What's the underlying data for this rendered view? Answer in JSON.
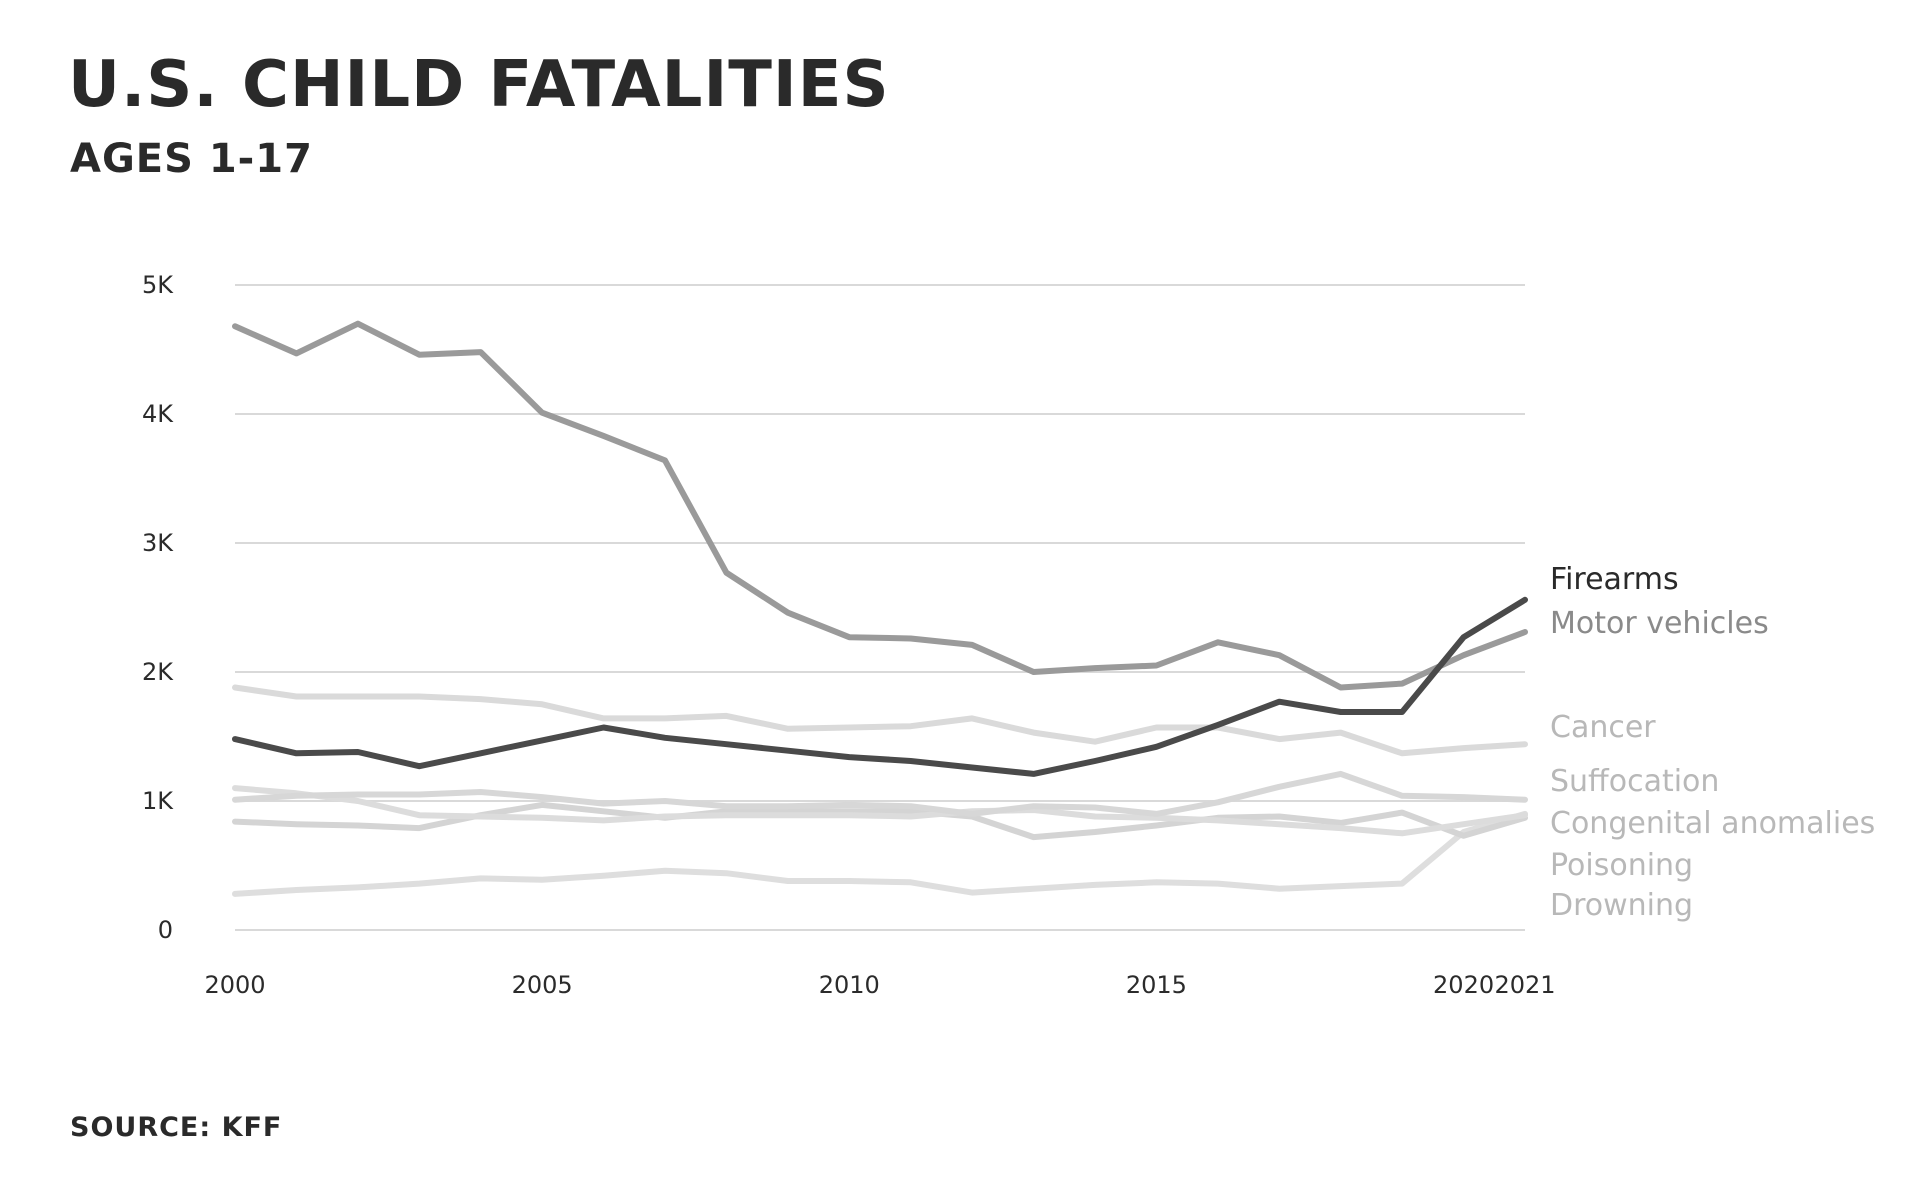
{
  "title": "U.S. CHILD FATALITIES",
  "subtitle": "AGES 1-17",
  "source": "SOURCE: KFF",
  "chart_data": {
    "type": "line",
    "title": "U.S. CHILD FATALITIES",
    "subtitle": "AGES 1-17",
    "xlabel": "",
    "ylabel": "",
    "x": [
      2000,
      2001,
      2002,
      2003,
      2004,
      2005,
      2006,
      2007,
      2008,
      2009,
      2010,
      2011,
      2012,
      2013,
      2014,
      2015,
      2016,
      2017,
      2018,
      2019,
      2020,
      2021
    ],
    "x_ticks": [
      2000,
      2005,
      2010,
      2015,
      2020,
      2021
    ],
    "x_tick_labels": [
      "2000",
      "2005",
      "2010",
      "2015",
      "2020",
      "2021"
    ],
    "xlim": [
      2000,
      2021
    ],
    "ylim": [
      0,
      5000
    ],
    "y_ticks": [
      0,
      1000,
      2000,
      3000,
      4000,
      5000
    ],
    "y_tick_labels": [
      "0",
      "1K",
      "2K",
      "3K",
      "4K",
      "5K"
    ],
    "grid": "horizontal",
    "legend": "direct labels at right end of lines",
    "series": [
      {
        "name": "Firearms",
        "color": "#4a4a4a",
        "label_color": "#2a2a2a",
        "values": [
          1480,
          1370,
          1380,
          1270,
          1370,
          1470,
          1570,
          1490,
          1440,
          1390,
          1340,
          1310,
          1260,
          1210,
          1310,
          1420,
          1590,
          1770,
          1690,
          1690,
          2270,
          2560
        ]
      },
      {
        "name": "Motor vehicles",
        "color": "#9a9a9a",
        "label_color": "#8a8a8a",
        "values": [
          4680,
          4470,
          4700,
          4460,
          4480,
          4010,
          3830,
          3640,
          2770,
          2460,
          2270,
          2260,
          2210,
          2000,
          2030,
          2050,
          2230,
          2130,
          1880,
          1910,
          2130,
          2310
        ]
      },
      {
        "name": "Cancer",
        "color": "#dadada",
        "label_color": "#b8b8b8",
        "values": [
          1880,
          1810,
          1810,
          1810,
          1790,
          1750,
          1640,
          1640,
          1660,
          1560,
          1570,
          1580,
          1640,
          1530,
          1460,
          1570,
          1570,
          1480,
          1530,
          1370,
          1410,
          1440
        ]
      },
      {
        "name": "Suffocation",
        "color": "#d7d7d7",
        "label_color": "#b8b8b8",
        "values": [
          1010,
          1040,
          1050,
          1050,
          1070,
          1030,
          980,
          1000,
          960,
          960,
          970,
          960,
          900,
          960,
          950,
          900,
          990,
          1110,
          1210,
          1040,
          1030,
          1010
        ]
      },
      {
        "name": "Congenital anomalies",
        "color": "#dcdcdc",
        "label_color": "#b8b8b8",
        "values": [
          1100,
          1060,
          1000,
          890,
          880,
          870,
          850,
          880,
          890,
          890,
          890,
          880,
          920,
          930,
          880,
          870,
          850,
          820,
          790,
          750,
          820,
          890
        ]
      },
      {
        "name": "Poisoning",
        "color": "#d4d4d4",
        "label_color": "#b8b8b8",
        "values": [
          840,
          820,
          810,
          790,
          890,
          970,
          920,
          870,
          920,
          920,
          920,
          920,
          880,
          720,
          760,
          810,
          870,
          880,
          830,
          910,
          730,
          870
        ]
      },
      {
        "name": "Drowning",
        "color": "#dedede",
        "label_color": "#b8b8b8",
        "values": [
          280,
          310,
          330,
          360,
          400,
          390,
          420,
          460,
          440,
          380,
          380,
          370,
          290,
          320,
          350,
          370,
          360,
          320,
          340,
          360,
          760,
          900
        ]
      }
    ]
  }
}
